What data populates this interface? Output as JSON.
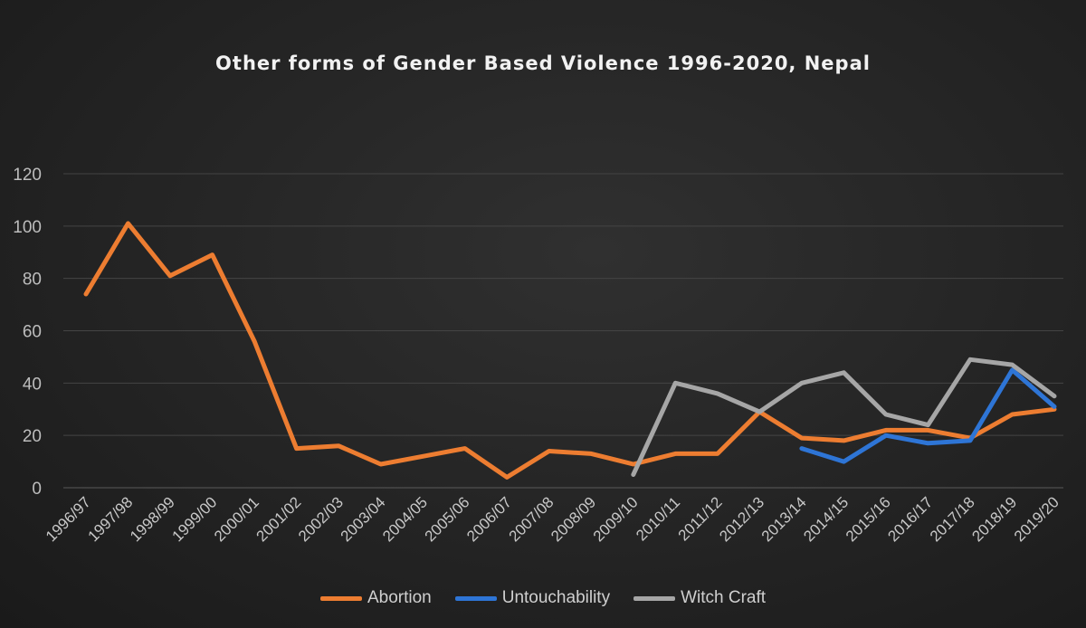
{
  "chart_data": {
    "type": "line",
    "title": "Other forms of Gender Based Violence 1996-2020, Nepal",
    "xlabel": "",
    "ylabel": "",
    "ylim": [
      0,
      120
    ],
    "yticks": [
      0,
      20,
      40,
      60,
      80,
      100,
      120
    ],
    "grid": true,
    "legend": "bottom",
    "categories": [
      "1996/97",
      "1997/98",
      "1998/99",
      "1999/00",
      "2000/01",
      "2001/02",
      "2002/03",
      "2003/04",
      "2004/05",
      "2005/06",
      "2006/07",
      "2007/08",
      "2008/09",
      "2009/10",
      "2010/11",
      "2011/12",
      "2012/13",
      "2013/14",
      "2014/15",
      "2015/16",
      "2016/17",
      "2017/18",
      "2018/19",
      "2019/20"
    ],
    "series": [
      {
        "name": "Abortion",
        "color": "#ed7d31",
        "values": [
          74,
          101,
          81,
          89,
          56,
          15,
          16,
          9,
          12,
          15,
          4,
          14,
          13,
          9,
          13,
          13,
          29,
          19,
          18,
          22,
          22,
          19,
          28,
          30
        ]
      },
      {
        "name": "Untouchability",
        "color": "#2e75d6",
        "values": [
          null,
          null,
          null,
          null,
          null,
          null,
          null,
          null,
          null,
          null,
          null,
          null,
          null,
          null,
          null,
          null,
          null,
          15,
          10,
          20,
          17,
          18,
          45,
          31
        ]
      },
      {
        "name": "Witch Craft",
        "color": "#a6a6a6",
        "values": [
          null,
          null,
          null,
          null,
          null,
          null,
          null,
          null,
          null,
          null,
          null,
          null,
          null,
          5,
          40,
          36,
          29,
          40,
          44,
          28,
          24,
          49,
          47,
          35
        ]
      }
    ]
  }
}
